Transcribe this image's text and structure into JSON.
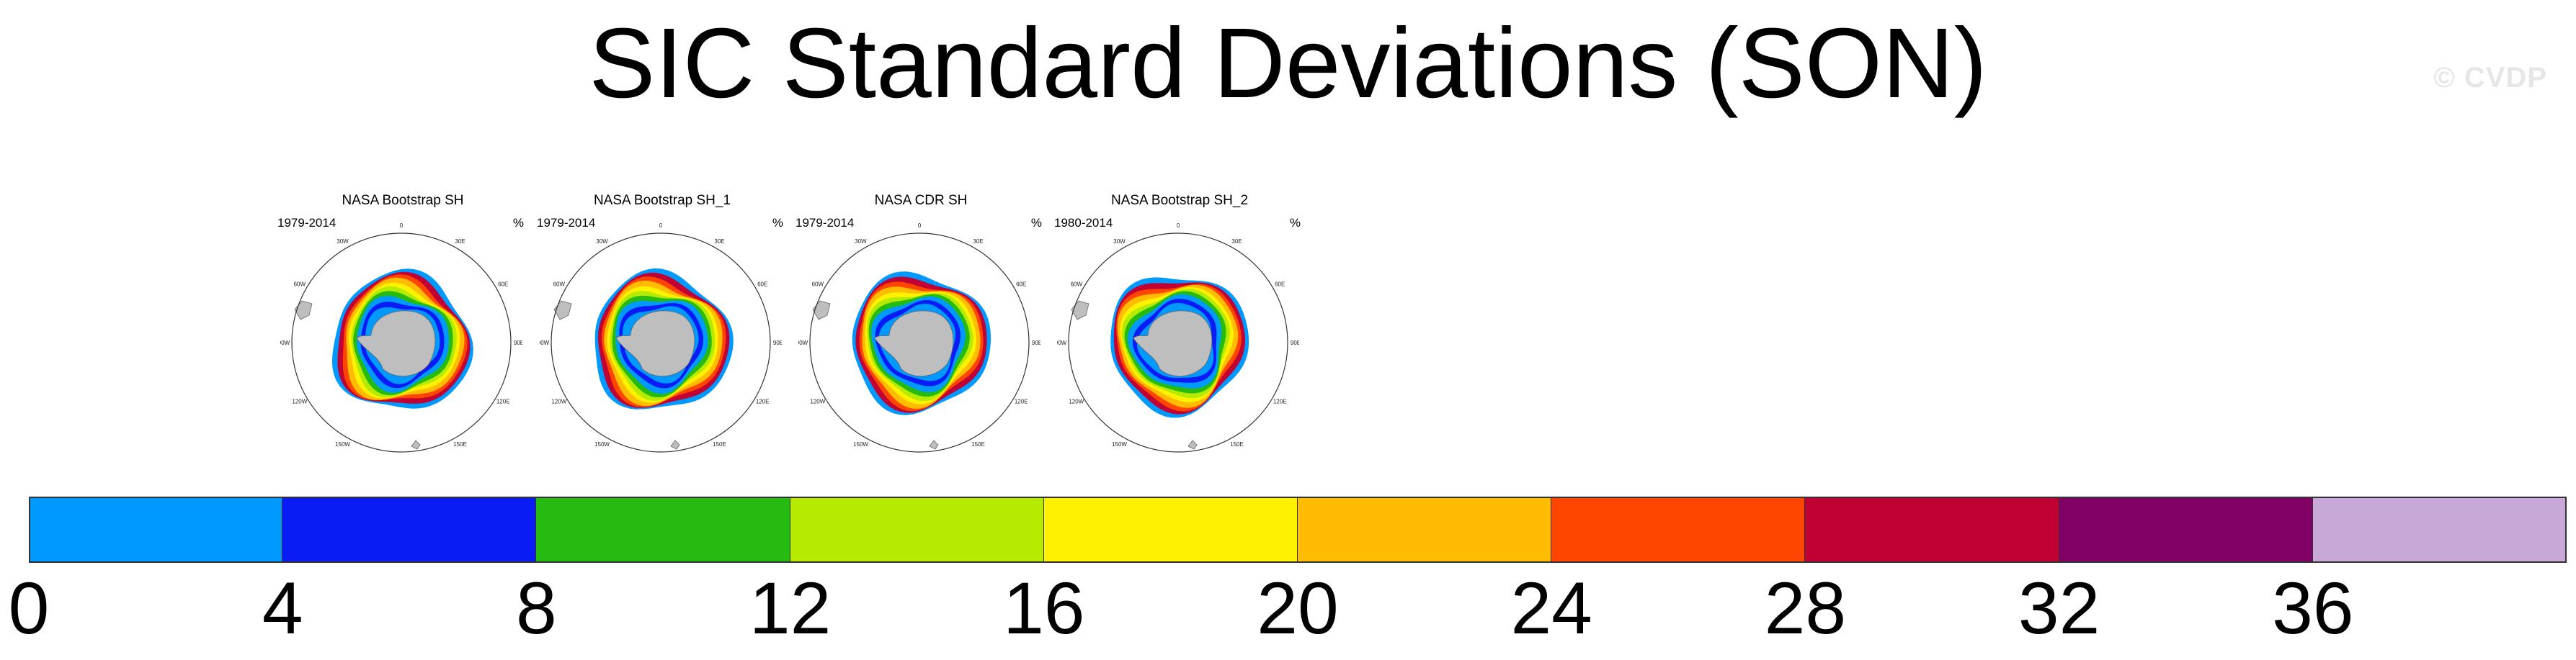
{
  "title": "SIC Standard Deviations (SON)",
  "watermark": "© CVDP",
  "panels": [
    {
      "title": "NASA Bootstrap SH",
      "years": "1979-2014",
      "unit": "%"
    },
    {
      "title": "NASA Bootstrap SH_1",
      "years": "1979-2014",
      "unit": "%"
    },
    {
      "title": "NASA CDR SH",
      "years": "1979-2014",
      "unit": "%"
    },
    {
      "title": "NASA Bootstrap SH_2",
      "years": "1980-2014",
      "unit": "%"
    }
  ],
  "longitude_labels": [
    "0",
    "30E",
    "60E",
    "90E",
    "120E",
    "150E",
    "180",
    "150W",
    "120W",
    "90W",
    "60W",
    "30W"
  ],
  "colorbar": {
    "unit": "%",
    "bins": [
      {
        "from": 0,
        "to": 4,
        "color": "#0099ff"
      },
      {
        "from": 4,
        "to": 8,
        "color": "#0a1cf5"
      },
      {
        "from": 8,
        "to": 12,
        "color": "#25bb10"
      },
      {
        "from": 12,
        "to": 16,
        "color": "#b6ea00"
      },
      {
        "from": 16,
        "to": 20,
        "color": "#fff200"
      },
      {
        "from": 20,
        "to": 24,
        "color": "#ffbc00"
      },
      {
        "from": 24,
        "to": 28,
        "color": "#ff4600"
      },
      {
        "from": 28,
        "to": 32,
        "color": "#c10033"
      },
      {
        "from": 32,
        "to": 36,
        "color": "#800066"
      },
      {
        "from": 36,
        "to": null,
        "color": "#c8a8d6"
      }
    ],
    "tick_labels": [
      "0",
      "4",
      "8",
      "12",
      "16",
      "20",
      "24",
      "28",
      "32",
      "36"
    ]
  },
  "land_color": "#bebebe"
}
